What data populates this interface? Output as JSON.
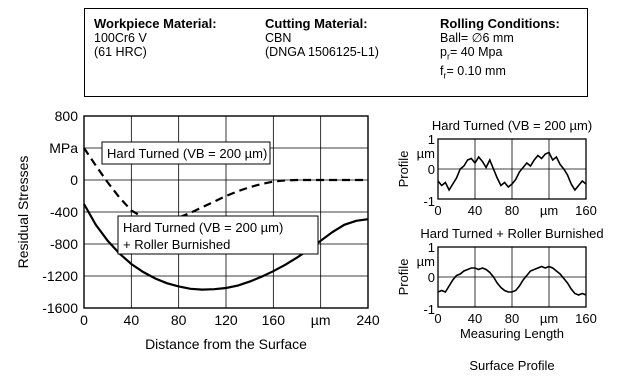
{
  "info": {
    "workpiece": {
      "title": "Workpiece Material:",
      "line1": "100Cr6 V",
      "line2": "(61 HRC)"
    },
    "cutting": {
      "title": "Cutting Material:",
      "line1": "CBN",
      "line2": "(DNGA 1506125-L1)"
    },
    "rolling": {
      "title": "Rolling Conditions:",
      "ball": "Ball= ∅6 mm",
      "pr": "p",
      "pr_sub": "r",
      "pr_val": "= 40 Mpa",
      "fr": "f",
      "fr_sub": "r",
      "fr_val": "= 0.10 mm"
    }
  },
  "chart_data": [
    {
      "type": "line",
      "ylabel": "Residual Stresses",
      "yunit": "MPa",
      "xlabel": "Distance from the Surface",
      "xunit": "µm",
      "xlim": [
        0,
        240
      ],
      "ylim": [
        -1600,
        800
      ],
      "xticks": [
        "0",
        "40",
        "80",
        "120",
        "160",
        "",
        "240"
      ],
      "yticks": [
        "800",
        "",
        "0",
        "-400",
        "-800",
        "-1200",
        "-1600"
      ],
      "grid": true,
      "series": [
        {
          "name": "Hard Turned (VB = 200 µm)",
          "style": "dashed",
          "x": [
            0,
            10,
            20,
            30,
            40,
            50,
            60,
            70,
            80,
            90,
            100,
            110,
            120,
            130,
            140,
            150,
            160,
            170,
            180,
            190,
            200,
            220,
            240
          ],
          "y": [
            400,
            180,
            -30,
            -220,
            -380,
            -470,
            -510,
            -505,
            -470,
            -410,
            -340,
            -270,
            -200,
            -140,
            -90,
            -50,
            -20,
            -5,
            0,
            0,
            0,
            0,
            0
          ]
        },
        {
          "name": "Hard Turned (VB = 200 µm) + Roller Burnished",
          "style": "solid",
          "x": [
            0,
            10,
            20,
            30,
            40,
            50,
            60,
            70,
            80,
            90,
            100,
            110,
            120,
            130,
            140,
            150,
            160,
            170,
            180,
            190,
            200,
            210,
            220,
            230,
            240
          ],
          "y": [
            -300,
            -560,
            -760,
            -920,
            -1050,
            -1150,
            -1230,
            -1290,
            -1330,
            -1360,
            -1370,
            -1365,
            -1350,
            -1320,
            -1270,
            -1210,
            -1140,
            -1060,
            -970,
            -870,
            -760,
            -650,
            -560,
            -510,
            -490
          ]
        }
      ]
    },
    {
      "type": "line",
      "title": "Hard Turned (VB = 200 µm)",
      "ylabel": "Profile",
      "yunit": "µm",
      "xunit": "µm",
      "xlim": [
        0,
        160
      ],
      "ylim": [
        -1,
        1
      ],
      "xticks": [
        "0",
        "40",
        "80",
        "",
        "160"
      ],
      "yticks": [
        "1",
        "0",
        "-1"
      ],
      "series": [
        {
          "x": [
            0,
            4,
            8,
            12,
            16,
            20,
            24,
            28,
            32,
            36,
            40,
            44,
            48,
            52,
            56,
            60,
            64,
            68,
            72,
            76,
            80,
            84,
            88,
            92,
            96,
            100,
            104,
            108,
            112,
            116,
            120,
            124,
            128,
            132,
            136,
            140,
            144,
            148,
            152,
            156,
            160
          ],
          "y": [
            -0.4,
            -0.55,
            -0.45,
            -0.7,
            -0.5,
            -0.3,
            0.0,
            0.1,
            0.3,
            0.35,
            0.2,
            0.4,
            0.25,
            0.05,
            0.3,
            0.0,
            -0.3,
            -0.55,
            -0.45,
            -0.6,
            -0.5,
            -0.35,
            -0.1,
            0.05,
            0.2,
            0.1,
            0.3,
            0.45,
            0.35,
            0.5,
            0.55,
            0.3,
            0.4,
            0.15,
            0.0,
            -0.2,
            -0.5,
            -0.7,
            -0.55,
            -0.4,
            -0.5
          ]
        }
      ]
    },
    {
      "type": "line",
      "title": "Hard Turned + Roller Burnished",
      "ylabel": "Profile",
      "yunit": "µm",
      "xlabel": "Measuring Length",
      "xunit": "µm",
      "xlim": [
        0,
        160
      ],
      "ylim": [
        -1,
        1
      ],
      "xticks": [
        "0",
        "40",
        "80",
        "",
        "160"
      ],
      "yticks": [
        "1",
        "0",
        "-1"
      ],
      "series": [
        {
          "x": [
            0,
            4,
            8,
            12,
            16,
            20,
            24,
            28,
            32,
            36,
            40,
            44,
            48,
            52,
            56,
            60,
            64,
            68,
            72,
            76,
            80,
            84,
            88,
            92,
            96,
            100,
            104,
            108,
            112,
            116,
            120,
            124,
            128,
            132,
            136,
            140,
            144,
            148,
            152,
            156,
            160
          ],
          "y": [
            -0.5,
            -0.45,
            -0.5,
            -0.3,
            -0.1,
            0.05,
            0.1,
            0.2,
            0.25,
            0.3,
            0.3,
            0.25,
            0.3,
            0.25,
            0.15,
            0.0,
            -0.2,
            -0.35,
            -0.45,
            -0.5,
            -0.5,
            -0.45,
            -0.3,
            -0.1,
            0.05,
            0.2,
            0.25,
            0.3,
            0.35,
            0.3,
            0.35,
            0.3,
            0.2,
            0.1,
            -0.05,
            -0.2,
            -0.4,
            -0.55,
            -0.6,
            -0.55,
            -0.6
          ]
        }
      ]
    }
  ],
  "caption": "Surface Profile"
}
